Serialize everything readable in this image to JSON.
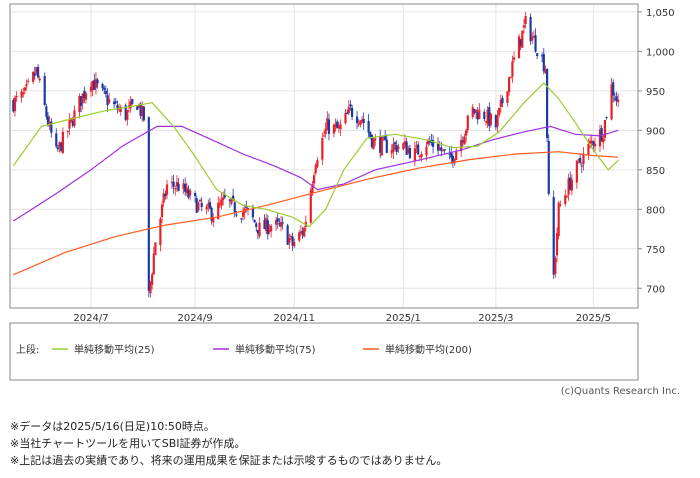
{
  "chart_data": {
    "type": "candlestick",
    "y_ticks": [
      "1,050",
      "1,000",
      "950",
      "900",
      "850",
      "800",
      "750",
      "700"
    ],
    "y_values": [
      1050,
      1000,
      950,
      900,
      850,
      800,
      750,
      700
    ],
    "ylim": [
      675,
      1060
    ],
    "x_ticks": [
      "2024/7",
      "2024/9",
      "2024/11",
      "2025/1",
      "2025/3",
      "2025/5"
    ],
    "x_tick_dates": [
      "2024-07-01",
      "2024-09-02",
      "2024-11-01",
      "2025-01-06",
      "2025-03-03",
      "2025-05-01"
    ],
    "xlim": [
      "2024-05-13",
      "2025-05-28"
    ],
    "colors": {
      "up": "#e8202a",
      "down": "#1b3aa8",
      "ma25": "#9acd32",
      "ma75": "#a030e0",
      "ma200": "#ff5a1e"
    },
    "legend": {
      "prefix": "上段:",
      "items": [
        {
          "label": "単純移動平均(25)",
          "color": "#9acd32"
        },
        {
          "label": "単純移動平均(75)",
          "color": "#a030e0"
        },
        {
          "label": "単純移動平均(200)",
          "color": "#ff5a1e"
        }
      ]
    },
    "price_path": [
      [
        "2024-05-15",
        935
      ],
      [
        "2024-05-22",
        945
      ],
      [
        "2024-05-29",
        975
      ],
      [
        "2024-06-05",
        910
      ],
      [
        "2024-06-10",
        870
      ],
      [
        "2024-06-17",
        900
      ],
      [
        "2024-06-24",
        935
      ],
      [
        "2024-07-01",
        965
      ],
      [
        "2024-07-08",
        945
      ],
      [
        "2024-07-15",
        930
      ],
      [
        "2024-07-22",
        920
      ],
      [
        "2024-07-29",
        935
      ],
      [
        "2024-08-02",
        915
      ],
      [
        "2024-08-05",
        690
      ],
      [
        "2024-08-09",
        760
      ],
      [
        "2024-08-16",
        830
      ],
      [
        "2024-08-23",
        830
      ],
      [
        "2024-08-30",
        815
      ],
      [
        "2024-09-06",
        800
      ],
      [
        "2024-09-13",
        795
      ],
      [
        "2024-09-20",
        810
      ],
      [
        "2024-09-27",
        800
      ],
      [
        "2024-10-04",
        795
      ],
      [
        "2024-10-11",
        775
      ],
      [
        "2024-10-18",
        780
      ],
      [
        "2024-10-25",
        775
      ],
      [
        "2024-10-31",
        755
      ],
      [
        "2024-11-07",
        775
      ],
      [
        "2024-11-14",
        865
      ],
      [
        "2024-11-21",
        905
      ],
      [
        "2024-11-28",
        900
      ],
      [
        "2024-12-05",
        925
      ],
      [
        "2024-12-12",
        915
      ],
      [
        "2024-12-19",
        885
      ],
      [
        "2024-12-26",
        880
      ],
      [
        "2025-01-06",
        880
      ],
      [
        "2025-01-13",
        870
      ],
      [
        "2025-01-20",
        885
      ],
      [
        "2025-01-27",
        880
      ],
      [
        "2025-02-03",
        860
      ],
      [
        "2025-02-10",
        890
      ],
      [
        "2025-02-17",
        925
      ],
      [
        "2025-02-24",
        920
      ],
      [
        "2025-03-03",
        905
      ],
      [
        "2025-03-10",
        960
      ],
      [
        "2025-03-17",
        1010
      ],
      [
        "2025-03-21",
        1035
      ],
      [
        "2025-03-27",
        1010
      ],
      [
        "2025-04-02",
        980
      ],
      [
        "2025-04-04",
        810
      ],
      [
        "2025-04-07",
        715
      ],
      [
        "2025-04-10",
        800
      ],
      [
        "2025-04-16",
        830
      ],
      [
        "2025-04-23",
        860
      ],
      [
        "2025-04-30",
        885
      ],
      [
        "2025-05-07",
        900
      ],
      [
        "2025-05-12",
        955
      ],
      [
        "2025-05-16",
        935
      ]
    ],
    "ma25": [
      [
        "2024-05-15",
        855
      ],
      [
        "2024-06-01",
        905
      ],
      [
        "2024-06-20",
        915
      ],
      [
        "2024-07-10",
        925
      ],
      [
        "2024-07-25",
        930
      ],
      [
        "2024-08-07",
        935
      ],
      [
        "2024-08-20",
        905
      ],
      [
        "2024-09-01",
        870
      ],
      [
        "2024-09-15",
        825
      ],
      [
        "2024-10-01",
        805
      ],
      [
        "2024-10-15",
        800
      ],
      [
        "2024-10-31",
        790
      ],
      [
        "2024-11-10",
        778
      ],
      [
        "2024-11-20",
        800
      ],
      [
        "2024-12-01",
        850
      ],
      [
        "2024-12-15",
        890
      ],
      [
        "2025-01-01",
        895
      ],
      [
        "2025-01-20",
        888
      ],
      [
        "2025-02-05",
        878
      ],
      [
        "2025-02-20",
        880
      ],
      [
        "2025-03-05",
        898
      ],
      [
        "2025-03-20",
        935
      ],
      [
        "2025-04-01",
        960
      ],
      [
        "2025-04-10",
        940
      ],
      [
        "2025-04-20",
        910
      ],
      [
        "2025-05-01",
        875
      ],
      [
        "2025-05-10",
        850
      ],
      [
        "2025-05-16",
        862
      ]
    ],
    "ma75": [
      [
        "2024-05-15",
        785
      ],
      [
        "2024-06-10",
        820
      ],
      [
        "2024-07-01",
        850
      ],
      [
        "2024-07-20",
        880
      ],
      [
        "2024-08-10",
        905
      ],
      [
        "2024-08-25",
        905
      ],
      [
        "2024-09-10",
        890
      ],
      [
        "2024-10-01",
        870
      ],
      [
        "2024-10-20",
        855
      ],
      [
        "2024-11-05",
        840
      ],
      [
        "2024-11-15",
        825
      ],
      [
        "2024-12-01",
        832
      ],
      [
        "2024-12-20",
        850
      ],
      [
        "2025-01-15",
        862
      ],
      [
        "2025-02-10",
        875
      ],
      [
        "2025-03-01",
        888
      ],
      [
        "2025-03-20",
        898
      ],
      [
        "2025-04-05",
        905
      ],
      [
        "2025-04-20",
        895
      ],
      [
        "2025-05-05",
        893
      ],
      [
        "2025-05-16",
        900
      ]
    ],
    "ma200": [
      [
        "2024-05-15",
        717
      ],
      [
        "2024-06-15",
        745
      ],
      [
        "2024-07-15",
        765
      ],
      [
        "2024-08-15",
        780
      ],
      [
        "2024-09-15",
        790
      ],
      [
        "2024-10-15",
        805
      ],
      [
        "2024-11-15",
        822
      ],
      [
        "2024-12-15",
        838
      ],
      [
        "2025-01-15",
        852
      ],
      [
        "2025-02-15",
        863
      ],
      [
        "2025-03-15",
        870
      ],
      [
        "2025-04-10",
        873
      ],
      [
        "2025-05-01",
        868
      ],
      [
        "2025-05-16",
        866
      ]
    ]
  },
  "footer": {
    "credit": "(c)Quants Research Inc.",
    "notes": [
      "※データは2025/5/16(日足)10:50時点。",
      "※当社チャートツールを用いてSBI証券が作成。",
      "※上記は過去の実績であり、将来の運用成果を保証または示唆するものではありません。"
    ]
  }
}
